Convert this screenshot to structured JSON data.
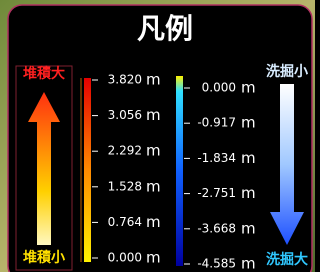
{
  "title": "凡例",
  "deposition": {
    "high": "堆積大",
    "low": "堆積小",
    "scale": [
      "3.820",
      "3.056",
      "2.292",
      "1.528",
      "0.764",
      "0.000"
    ]
  },
  "scour": {
    "low": "洗掘小",
    "high": "洗掘大",
    "scale": [
      "0.000",
      "-0.917",
      "-1.834",
      "-2.751",
      "-3.668",
      "-4.585"
    ]
  },
  "unit": "m"
}
